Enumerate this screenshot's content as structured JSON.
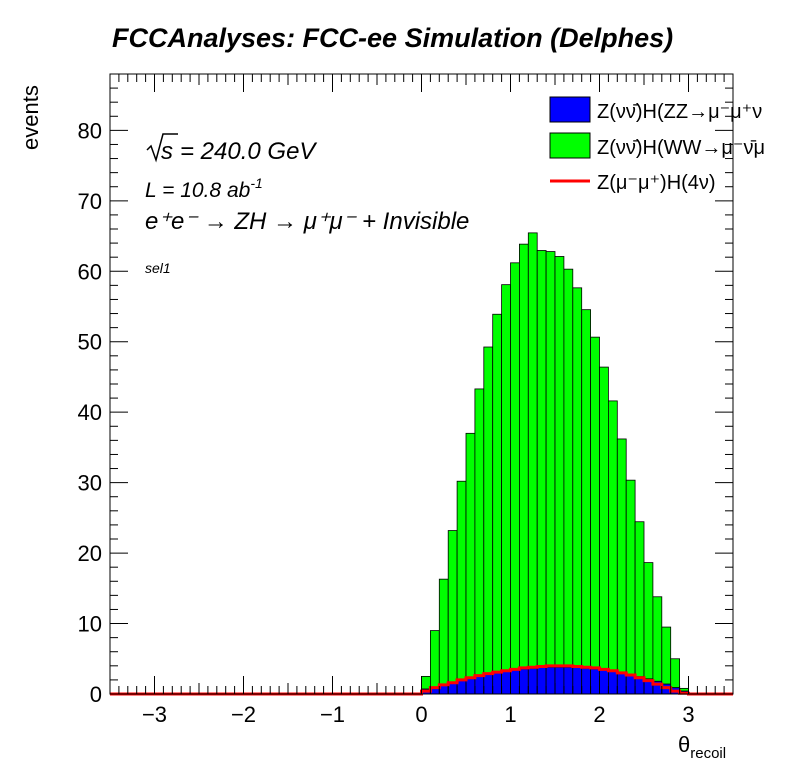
{
  "chart_data": {
    "type": "bar",
    "title": "FCCAnalyses: FCC-ee Simulation (Delphes)",
    "xlabel": "θ",
    "xlabel_sub": "recoil",
    "ylabel": "events",
    "xlim": [
      -3.5,
      3.5
    ],
    "ylim": [
      0,
      88
    ],
    "xticks": [
      "−3",
      "−2",
      "−1",
      "0",
      "1",
      "2",
      "3"
    ],
    "yticks": [
      "0",
      "10",
      "20",
      "30",
      "40",
      "50",
      "60",
      "70",
      "80"
    ],
    "annotations": {
      "sqrt_s": "s",
      "energy": "= 240.0 GeV",
      "lumi": "L = 10.8 ab",
      "lumi_sup": "-1",
      "process": "e⁺e⁻ → ZH → μ⁺μ⁻ + Invisible",
      "selection": "sel1"
    },
    "bin_edges_start": 0.0,
    "bin_width": 0.1,
    "legend_position": "top-right",
    "series": [
      {
        "name": "Z(νν̄)H(ZZ→μ⁻μ⁺ν",
        "color": "#0000ff",
        "style": "stacked-fill",
        "values": [
          0.7,
          1.0,
          1.3,
          1.6,
          1.9,
          2.2,
          2.5,
          2.75,
          3.0,
          3.2,
          3.4,
          3.55,
          3.65,
          3.75,
          3.8,
          3.8,
          3.8,
          3.75,
          3.65,
          3.55,
          3.4,
          3.2,
          3.0,
          2.75,
          2.45,
          2.15,
          1.8,
          1.4,
          0.9,
          0.4
        ]
      },
      {
        "name": "Z(νν̄)H(WW→μ⁻ν̄μ",
        "color": "#00ff00",
        "style": "stacked-fill",
        "values": [
          1.8,
          8.0,
          15.0,
          21.6,
          28.3,
          34.8,
          40.8,
          46.5,
          50.9,
          54.9,
          57.8,
          60.3,
          61.8,
          59.2,
          59.0,
          58.3,
          56.5,
          53.9,
          50.9,
          47.1,
          43.0,
          38.4,
          33.2,
          27.6,
          22.0,
          16.5,
          12.0,
          8.1,
          4.1,
          0.4
        ]
      },
      {
        "name": "Z(μ⁻μ⁺)H(4ν)",
        "color": "#ff0000",
        "style": "line",
        "values": [
          0.4,
          0.9,
          1.3,
          1.6,
          2.0,
          2.3,
          2.6,
          2.9,
          3.1,
          3.3,
          3.5,
          3.7,
          3.8,
          3.9,
          4.0,
          4.0,
          4.0,
          3.9,
          3.8,
          3.7,
          3.5,
          3.3,
          3.0,
          2.7,
          2.3,
          1.9,
          1.4,
          0.9,
          0.4,
          0.1
        ]
      }
    ]
  }
}
